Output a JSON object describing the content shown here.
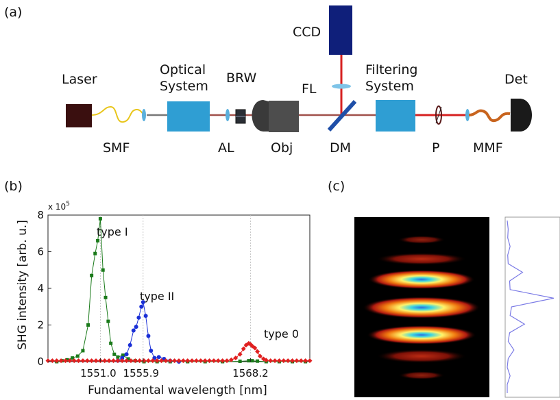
{
  "panels": {
    "a": "(a)",
    "b": "(b)",
    "c": "(c)"
  },
  "setup": {
    "labels": {
      "laser": "Laser",
      "optical_1": "Optical",
      "optical_2": "System",
      "brw": "BRW",
      "ccd": "CCD",
      "fl": "FL",
      "filter_1": "Filtering",
      "filter_2": "System",
      "det": "Det",
      "smf": "SMF",
      "al": "AL",
      "obj": "Obj",
      "dm": "DM",
      "p": "P",
      "mmf": "MMF"
    }
  },
  "chart_data": {
    "type": "scatter",
    "ylabel": "SHG intensity [arb. u.]",
    "xlabel": "Fundamental wavelength [nm]",
    "multiplier": "x 10",
    "multiplier_exp": "5",
    "xlim": [
      1545.0,
      1575.0
    ],
    "ylim": [
      0,
      8
    ],
    "yticks": [
      "0",
      "2",
      "4",
      "6",
      "8"
    ],
    "xtick_labels": [
      "1551.0",
      "1555.9",
      "1568.2"
    ],
    "xticks": [
      1551.0,
      1555.9,
      1568.2
    ],
    "annotations": {
      "type1": "type I",
      "type2": "type II",
      "type0": "type 0"
    },
    "series": [
      {
        "color": "#1a7a1a",
        "marker": "square",
        "x": [
          1546.0,
          1546.6,
          1547.2,
          1547.8,
          1548.4,
          1549.0,
          1549.6,
          1550.0,
          1550.4,
          1550.7,
          1551.0,
          1551.3,
          1551.6,
          1551.9,
          1552.2,
          1552.6,
          1553.0,
          1553.6,
          1554.2,
          1555.0,
          1556.0,
          1557.5,
          1559.0,
          1561.0,
          1563.0,
          1565.0,
          1567.0,
          1568.0,
          1568.4,
          1569.0,
          1570.0,
          1571.5,
          1573.0,
          1574.5
        ],
        "y": [
          0.0,
          0.05,
          0.1,
          0.2,
          0.3,
          0.6,
          2.0,
          4.7,
          5.9,
          6.6,
          7.8,
          5.0,
          3.5,
          2.2,
          1.0,
          0.4,
          0.25,
          0.35,
          0.15,
          0.05,
          0.0,
          0.0,
          0.0,
          0.0,
          0.0,
          0.0,
          0.02,
          0.05,
          0.05,
          0.03,
          0.0,
          0.0,
          0.0,
          0.0
        ]
      },
      {
        "color": "#1a2fd6",
        "marker": "circle",
        "x": [
          1553.0,
          1553.5,
          1554.0,
          1554.4,
          1554.8,
          1555.1,
          1555.4,
          1555.7,
          1555.9,
          1556.2,
          1556.5,
          1556.8,
          1557.2,
          1557.7,
          1558.3,
          1559.0,
          1560.0
        ],
        "y": [
          0.05,
          0.2,
          0.4,
          0.9,
          1.7,
          1.9,
          2.4,
          3.0,
          3.25,
          2.5,
          1.4,
          0.6,
          0.2,
          0.25,
          0.15,
          0.05,
          0.0
        ]
      },
      {
        "color": "#e02020",
        "marker": "diamond",
        "x": [
          1545.0,
          1545.5,
          1546.0,
          1546.5,
          1547.0,
          1547.5,
          1548.0,
          1548.5,
          1549.0,
          1549.5,
          1550.0,
          1550.5,
          1551.0,
          1551.5,
          1552.0,
          1552.5,
          1553.0,
          1553.5,
          1554.0,
          1554.5,
          1555.0,
          1555.5,
          1556.0,
          1556.5,
          1557.0,
          1557.5,
          1558.0,
          1558.5,
          1559.0,
          1559.5,
          1560.0,
          1560.5,
          1561.0,
          1561.5,
          1562.0,
          1562.5,
          1563.0,
          1563.5,
          1564.0,
          1564.5,
          1565.0,
          1565.5,
          1566.0,
          1566.5,
          1567.0,
          1567.4,
          1567.7,
          1568.0,
          1568.2,
          1568.4,
          1568.7,
          1569.0,
          1569.3,
          1569.7,
          1570.0,
          1570.5,
          1571.0,
          1571.5,
          1572.0,
          1572.5,
          1573.0,
          1573.5,
          1574.0,
          1574.5,
          1575.0
        ],
        "y": [
          0.05,
          0.05,
          0.05,
          0.05,
          0.05,
          0.05,
          0.05,
          0.05,
          0.05,
          0.05,
          0.05,
          0.05,
          0.05,
          0.05,
          0.05,
          0.05,
          0.05,
          0.05,
          0.05,
          0.05,
          0.05,
          0.05,
          0.05,
          0.05,
          0.05,
          0.05,
          0.05,
          0.05,
          0.05,
          0.05,
          0.05,
          0.05,
          0.05,
          0.05,
          0.05,
          0.05,
          0.05,
          0.05,
          0.05,
          0.05,
          0.05,
          0.05,
          0.1,
          0.2,
          0.4,
          0.7,
          0.9,
          1.0,
          0.95,
          0.85,
          0.75,
          0.55,
          0.3,
          0.15,
          0.08,
          0.05,
          0.05,
          0.05,
          0.05,
          0.05,
          0.05,
          0.05,
          0.05,
          0.05,
          0.05
        ]
      }
    ]
  },
  "profile": {
    "y": [
      0.0,
      0.02,
      0.01,
      0.06,
      0.01,
      0.02,
      0.32,
      0.05,
      0.06,
      0.97,
      0.09,
      0.06,
      0.36,
      0.05,
      0.02,
      0.14,
      0.02,
      0.0,
      0.06,
      0.0,
      0.0
    ]
  }
}
